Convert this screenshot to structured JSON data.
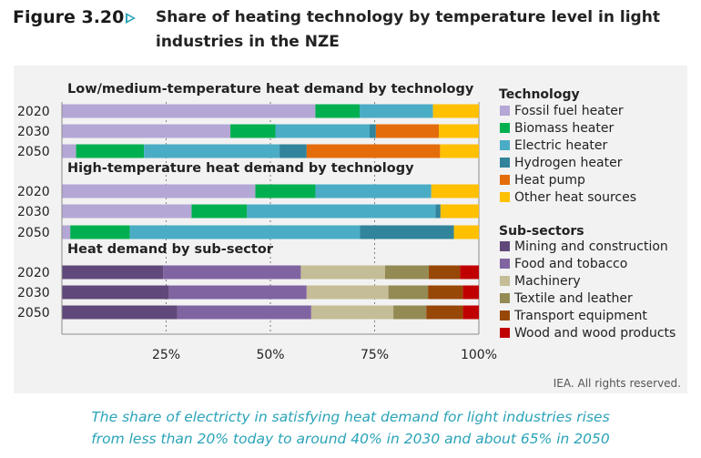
{
  "figure": {
    "label": "Figure 3.20",
    "title": "Share of heating technology by temperature level in light industries in the NZE"
  },
  "colors": {
    "Fossil fuel heater": "#b4a7d6",
    "Biomass heater": "#00b050",
    "Electric heater": "#4bacc6",
    "Hydrogen heater": "#31849b",
    "Heat pump": "#e46c0a",
    "Other heat sources": "#ffc000",
    "Mining and construction": "#60497a",
    "Food and tobacco": "#8064a2",
    "Machinery": "#c4bd97",
    "Textile and leather": "#948a54",
    "Transport equipment": "#974706",
    "Wood and wood products": "#c00000"
  },
  "chart_data": {
    "type": "bar",
    "orientation": "horizontal",
    "stacked": "percent",
    "xlim": [
      0,
      100
    ],
    "x_ticks": [
      "25%",
      "50%",
      "75%",
      "100%"
    ],
    "grid": "dotted vertical",
    "panels": [
      {
        "title": "Low/medium-temperature heat demand by technology",
        "categories": [
          "2020",
          "2030",
          "2050"
        ],
        "series": [
          {
            "name": "Fossil fuel heater",
            "values": [
              60.8,
              40.4,
              3.4
            ]
          },
          {
            "name": "Biomass heater",
            "values": [
              10.6,
              10.8,
              16.3
            ]
          },
          {
            "name": "Electric heater",
            "values": [
              17.6,
              22.6,
              32.5
            ]
          },
          {
            "name": "Hydrogen heater",
            "values": [
              0,
              1.5,
              6.5
            ]
          },
          {
            "name": "Heat pump",
            "values": [
              0,
              15.1,
              32
            ]
          },
          {
            "name": "Other heat sources",
            "values": [
              11,
              9.6,
              9.3
            ]
          }
        ]
      },
      {
        "title": "High-temperature heat demand by technology",
        "categories": [
          "2020",
          "2030",
          "2050"
        ],
        "series": [
          {
            "name": "Fossil fuel heater",
            "values": [
              46.4,
              31.1,
              2
            ]
          },
          {
            "name": "Biomass heater",
            "values": [
              14.4,
              13.3,
              14.3
            ]
          },
          {
            "name": "Electric heater",
            "values": [
              27.8,
              45.2,
              55.2
            ]
          },
          {
            "name": "Hydrogen heater",
            "values": [
              0,
              1.2,
              22.5
            ]
          },
          {
            "name": "Heat pump",
            "values": [
              0,
              0,
              0
            ]
          },
          {
            "name": "Other heat sources",
            "values": [
              11.4,
              9.2,
              6
            ]
          }
        ]
      },
      {
        "title": "Heat demand by sub-sector",
        "categories": [
          "2020",
          "2030",
          "2050"
        ],
        "series": [
          {
            "name": "Mining and construction",
            "values": [
              24.3,
              25.7,
              27.7
            ]
          },
          {
            "name": "Food and tobacco",
            "values": [
              33,
              33,
              32.1
            ]
          },
          {
            "name": "Machinery",
            "values": [
              20.2,
              19.6,
              19.7
            ]
          },
          {
            "name": "Textile and leather",
            "values": [
              10.5,
              9.5,
              7.9
            ]
          },
          {
            "name": "Transport equipment",
            "values": [
              7.5,
              8.4,
              8.8
            ]
          },
          {
            "name": "Wood and wood products",
            "values": [
              4.5,
              3.8,
              3.8
            ]
          }
        ]
      }
    ],
    "legend": {
      "placement": "right",
      "groups": [
        {
          "title": "Technology",
          "items": [
            "Fossil fuel heater",
            "Biomass heater",
            "Electric heater",
            "Hydrogen heater",
            "Heat pump",
            "Other heat sources"
          ]
        },
        {
          "title": "Sub-sectors",
          "items": [
            "Mining and construction",
            "Food and tobacco",
            "Machinery",
            "Textile and leather",
            "Transport equipment",
            "Wood and wood products"
          ]
        }
      ]
    }
  },
  "source": "IEA. All rights reserved.",
  "caption": {
    "line1": "The share of electricty in satisfying heat demand for light industries rises",
    "line2": "from less than 20% today to around 40% in 2030 and about 65% in 2050"
  }
}
